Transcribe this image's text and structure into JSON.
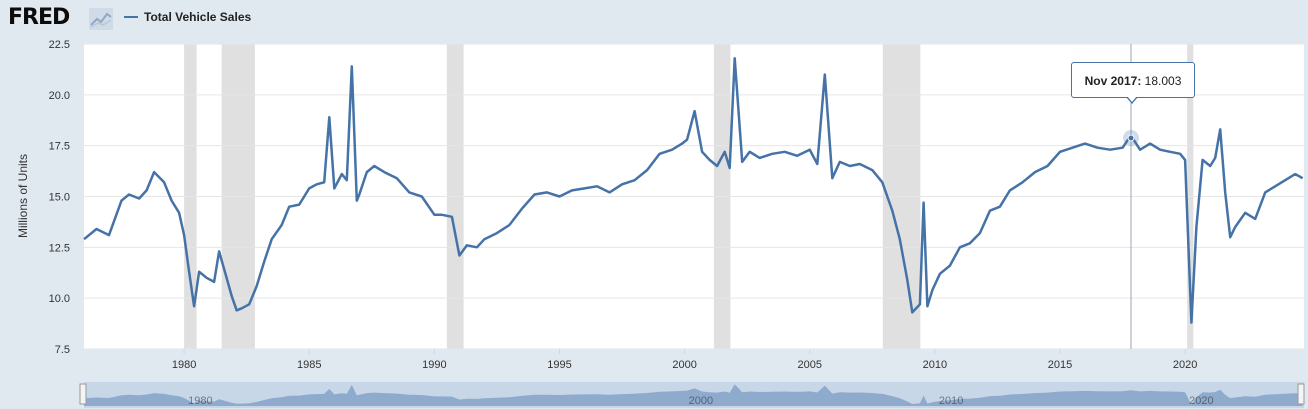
{
  "header": {
    "logo_text": "FRED",
    "logo_icon": "line-chart-icon",
    "legend_label": "Total Vehicle Sales"
  },
  "colors": {
    "series": "#4572a7",
    "recession": "#e0e0e0",
    "background": "#e1e9f0"
  },
  "tooltip": {
    "label": "Nov 2017:",
    "value": "18.003"
  },
  "navigator": {
    "labels": [
      "1980",
      "2000",
      "2010",
      "2020"
    ]
  },
  "chart_data": {
    "type": "line",
    "title": "",
    "xlabel": "",
    "ylabel": "Millions of Units",
    "xlim": [
      1976.0,
      2024.75
    ],
    "ylim": [
      7.5,
      22.5
    ],
    "yticks": [
      "7.5",
      "10.0",
      "12.5",
      "15.0",
      "17.5",
      "20.0",
      "22.5"
    ],
    "xticks": [
      "1980",
      "1985",
      "1990",
      "1995",
      "2000",
      "2005",
      "2010",
      "2015",
      "2020"
    ],
    "grid": true,
    "legend": "top-left",
    "recessions": [
      [
        1980.0,
        1980.5
      ],
      [
        1981.5,
        1982.83
      ],
      [
        1990.5,
        1991.17
      ],
      [
        2001.17,
        2001.83
      ],
      [
        2007.92,
        2009.42
      ],
      [
        2020.08,
        2020.33
      ]
    ],
    "series": [
      {
        "name": "Total Vehicle Sales",
        "x": [
          1976.0,
          1976.5,
          1977.0,
          1977.5,
          1977.8,
          1978.2,
          1978.5,
          1978.8,
          1979.2,
          1979.5,
          1979.8,
          1980.0,
          1980.2,
          1980.4,
          1980.6,
          1980.9,
          1981.2,
          1981.4,
          1981.7,
          1981.9,
          1982.1,
          1982.3,
          1982.6,
          1982.9,
          1983.2,
          1983.5,
          1983.9,
          1984.2,
          1984.6,
          1985.0,
          1985.3,
          1985.6,
          1985.8,
          1986.0,
          1986.3,
          1986.5,
          1986.7,
          1986.9,
          1987.0,
          1987.3,
          1987.6,
          1988.0,
          1988.5,
          1989.0,
          1989.5,
          1990.0,
          1990.3,
          1990.7,
          1991.0,
          1991.3,
          1991.7,
          1992.0,
          1992.5,
          1993.0,
          1993.5,
          1994.0,
          1994.5,
          1995.0,
          1995.5,
          1996.0,
          1996.5,
          1997.0,
          1997.5,
          1998.0,
          1998.5,
          1999.0,
          1999.5,
          1999.9,
          2000.1,
          2000.4,
          2000.7,
          2001.0,
          2001.3,
          2001.6,
          2001.8,
          2002.0,
          2002.3,
          2002.6,
          2003.0,
          2003.5,
          2004.0,
          2004.5,
          2005.0,
          2005.3,
          2005.6,
          2005.9,
          2006.2,
          2006.6,
          2007.0,
          2007.5,
          2007.9,
          2008.3,
          2008.6,
          2008.9,
          2009.1,
          2009.4,
          2009.55,
          2009.7,
          2009.9,
          2010.2,
          2010.6,
          2011.0,
          2011.4,
          2011.8,
          2012.2,
          2012.6,
          2013.0,
          2013.5,
          2014.0,
          2014.5,
          2015.0,
          2015.5,
          2016.0,
          2016.5,
          2017.0,
          2017.5,
          2017.83,
          2018.2,
          2018.6,
          2019.0,
          2019.4,
          2019.8,
          2020.0,
          2020.25,
          2020.45,
          2020.7,
          2021.0,
          2021.2,
          2021.4,
          2021.6,
          2021.8,
          2022.0,
          2022.4,
          2022.8,
          2023.2,
          2023.6,
          2024.0,
          2024.4,
          2024.7
        ],
        "values": [
          12.9,
          13.4,
          13.1,
          14.8,
          15.1,
          14.9,
          15.3,
          16.2,
          15.7,
          14.8,
          14.2,
          13.1,
          11.3,
          9.6,
          11.3,
          11.0,
          10.8,
          12.3,
          11.0,
          10.1,
          9.4,
          9.5,
          9.7,
          10.6,
          11.8,
          12.9,
          13.6,
          14.5,
          14.6,
          15.4,
          15.6,
          15.7,
          18.9,
          15.4,
          16.1,
          15.8,
          21.4,
          14.8,
          15.1,
          16.2,
          16.5,
          16.2,
          15.9,
          15.2,
          15.0,
          14.1,
          14.1,
          14.0,
          12.1,
          12.6,
          12.5,
          12.9,
          13.2,
          13.6,
          14.4,
          15.1,
          15.2,
          15.0,
          15.3,
          15.4,
          15.5,
          15.2,
          15.6,
          15.8,
          16.3,
          17.1,
          17.3,
          17.6,
          17.8,
          19.2,
          17.2,
          16.8,
          16.5,
          17.2,
          16.4,
          21.8,
          16.7,
          17.2,
          16.9,
          17.1,
          17.2,
          17.0,
          17.3,
          16.6,
          21.0,
          15.9,
          16.7,
          16.5,
          16.6,
          16.3,
          15.7,
          14.3,
          12.9,
          10.9,
          9.3,
          9.7,
          14.7,
          9.6,
          10.4,
          11.2,
          11.6,
          12.5,
          12.7,
          13.2,
          14.3,
          14.5,
          15.3,
          15.7,
          16.2,
          16.5,
          17.2,
          17.4,
          17.6,
          17.4,
          17.3,
          17.4,
          18.0,
          17.3,
          17.6,
          17.3,
          17.2,
          17.1,
          16.8,
          8.8,
          13.5,
          16.8,
          16.5,
          16.9,
          18.3,
          15.2,
          13.0,
          13.5,
          14.2,
          13.9,
          15.2,
          15.5,
          15.8,
          16.1,
          15.9
        ]
      }
    ]
  }
}
